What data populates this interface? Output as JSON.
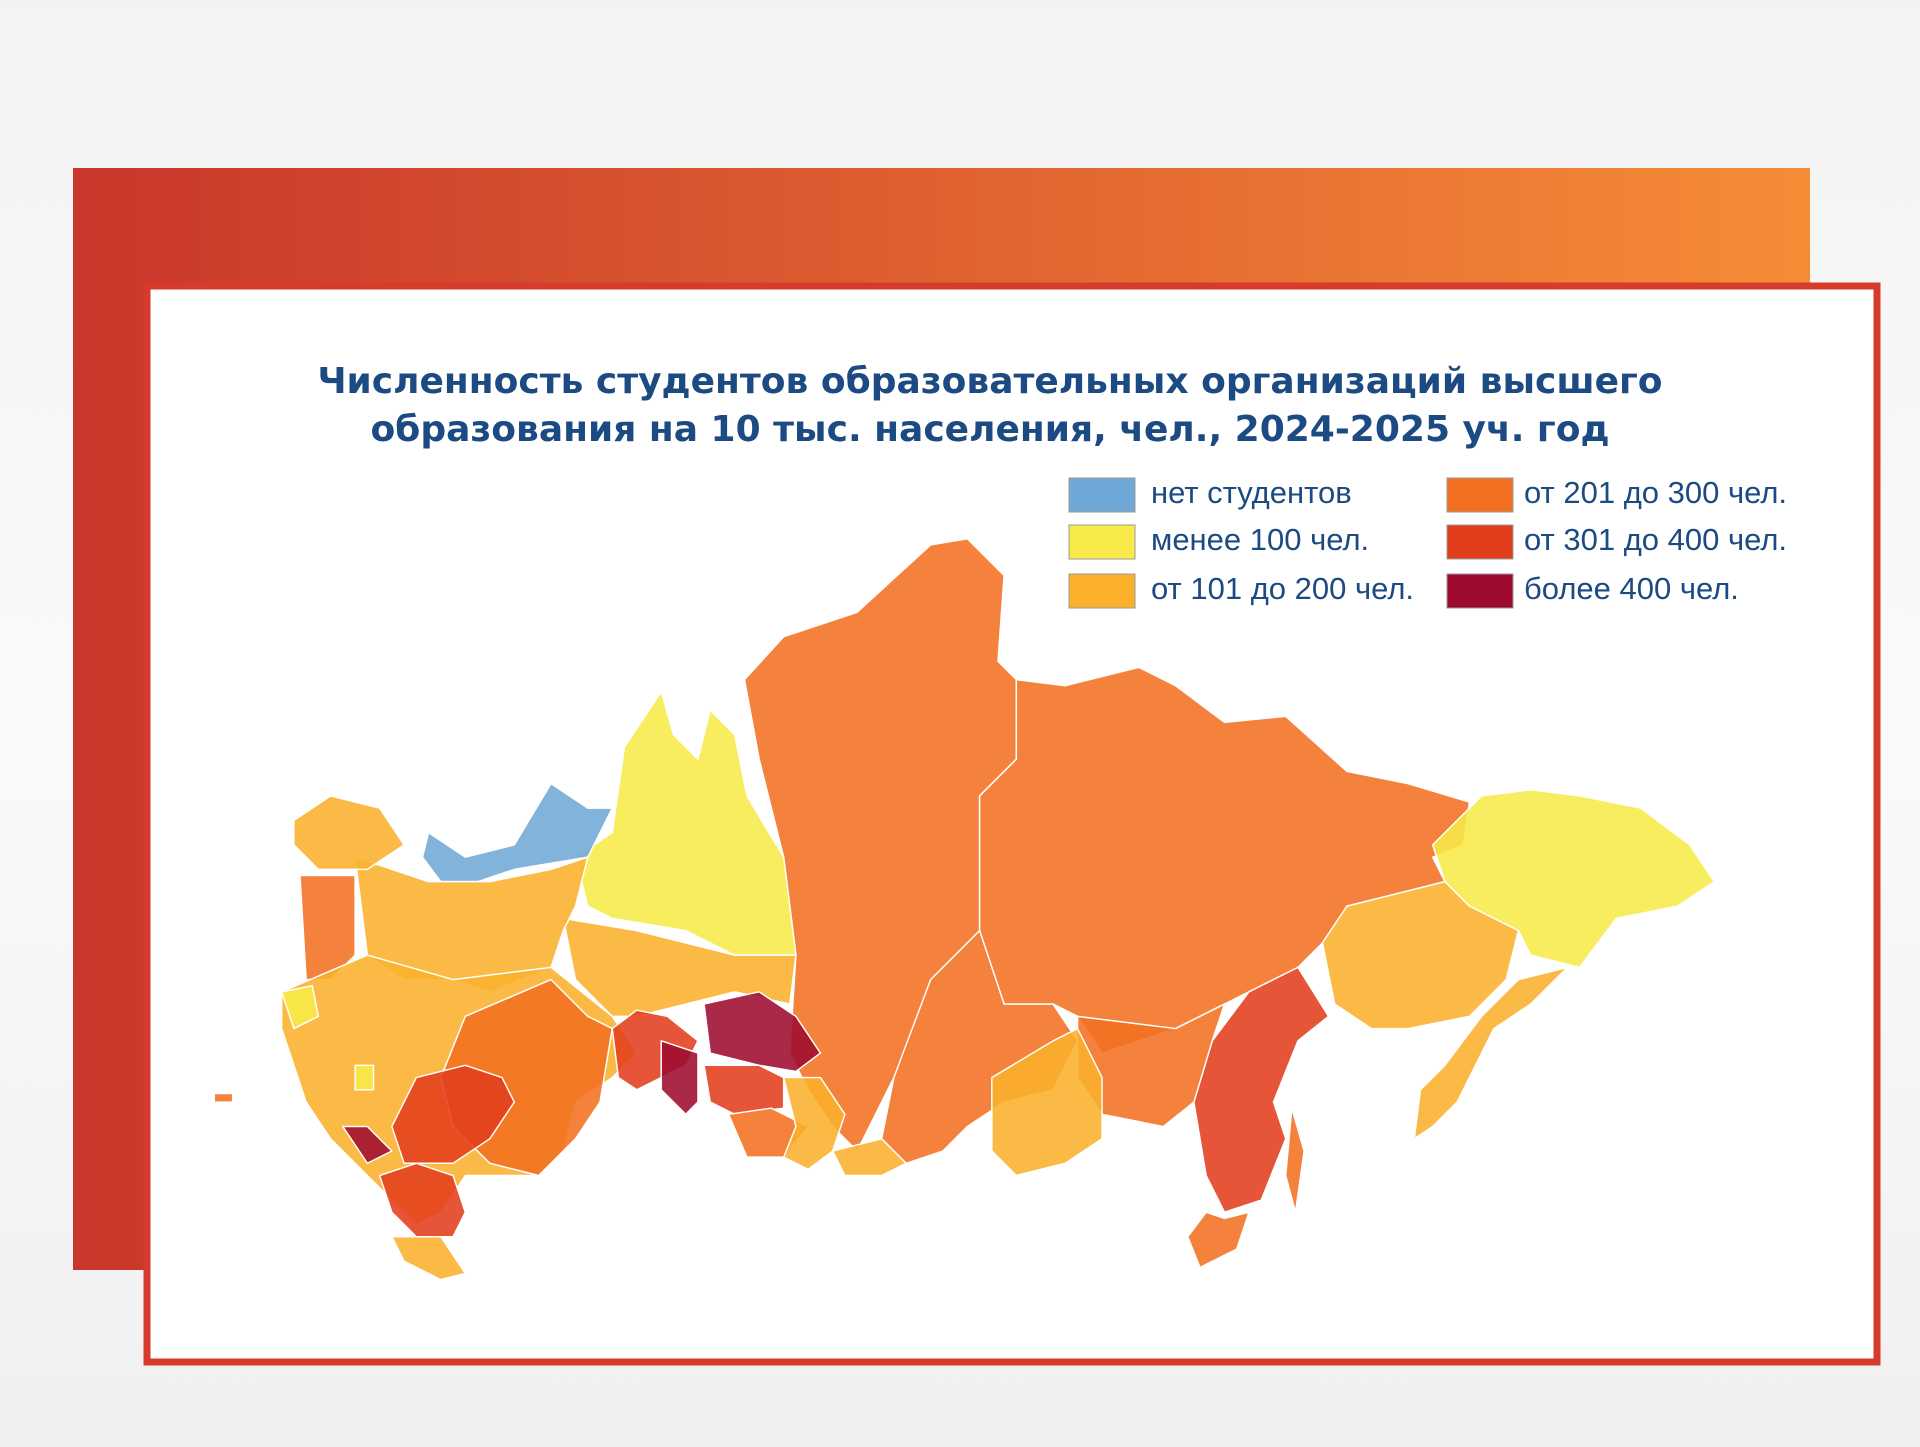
{
  "header": {
    "title_lines": [
      "Численность студентов образовательных организаций высшего",
      "образования на 10 тыс. населения, чел., 2024-2025  уч. год"
    ]
  },
  "legend": {
    "items": [
      {
        "label": "нет студентов",
        "color": "#6fa8d6"
      },
      {
        "label": "менее 100 чел.",
        "color": "#f7ea48"
      },
      {
        "label": "от 101 до 200 чел.",
        "color": "#fbb02c"
      },
      {
        "label": "от 201 до 300 чел.",
        "color": "#f37021"
      },
      {
        "label": "от 301 до 400 чел.",
        "color": "#e23e1c"
      },
      {
        "label": "более 400 чел.",
        "color": "#9e0b2f"
      }
    ]
  }
}
